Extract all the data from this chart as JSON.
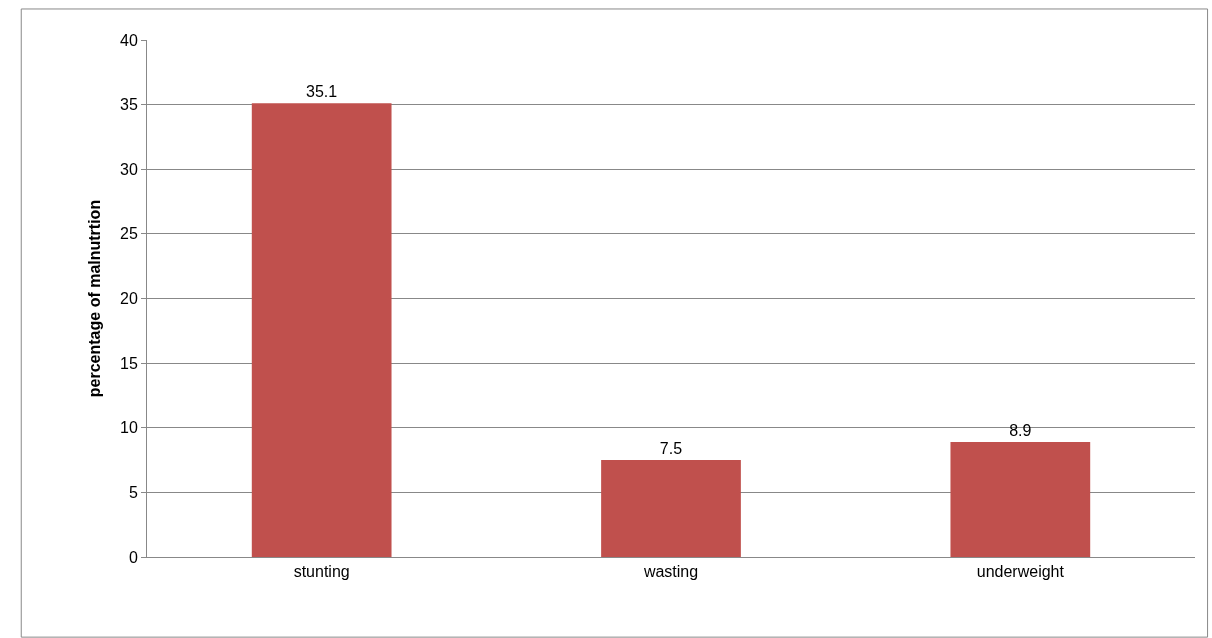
{
  "chart_data": {
    "type": "bar",
    "ylabel": "percentage of malnutrtion",
    "categories": [
      "stunting",
      "wasting",
      "underweight"
    ],
    "values": [
      35.1,
      7.5,
      8.9
    ],
    "color": "#c0504d",
    "ylim": [
      0,
      40
    ],
    "yticks": [
      0,
      5,
      10,
      15,
      20,
      25,
      30,
      35,
      40
    ],
    "grid": "y",
    "data_labels": true
  }
}
